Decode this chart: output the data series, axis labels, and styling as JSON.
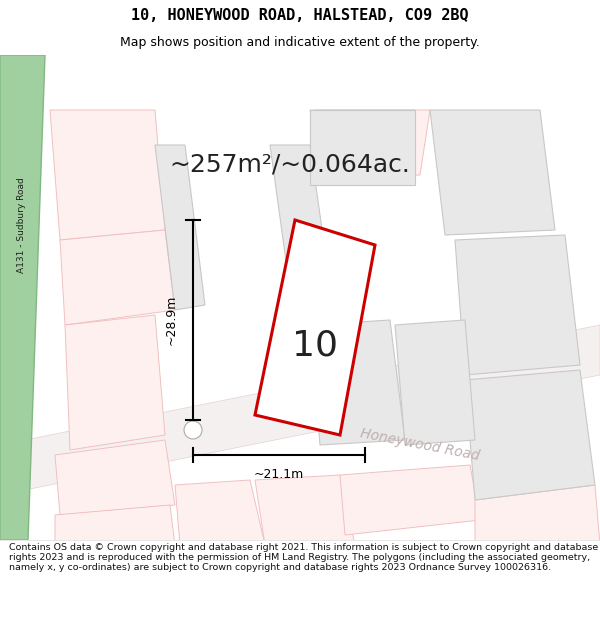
{
  "title": "10, HONEYWOOD ROAD, HALSTEAD, CO9 2BQ",
  "subtitle": "Map shows position and indicative extent of the property.",
  "area_text": "~257m²/~0.064ac.",
  "dim_width": "~21.1m",
  "dim_height": "~28.9m",
  "plot_number": "10",
  "road_label": "Honeywood Road",
  "road_label_2": "A131 - Sudbury Road",
  "footer": "Contains OS data © Crown copyright and database right 2021. This information is subject to Crown copyright and database rights 2023 and is reproduced with the permission of HM Land Registry. The polygons (including the associated geometry, namely x, y co-ordinates) are subject to Crown copyright and database rights 2023 Ordnance Survey 100026316.",
  "bg_color": "#f8f5f5",
  "plot_fill": "#ffffff",
  "plot_outline": "#cc0000",
  "neighbor_fill": "#e8e8e8",
  "neighbor_outline": "#c8c8c8",
  "pink_fill": "#fff0f0",
  "pink_outline": "#f0c0c0",
  "road_fill": "#f5f0f0",
  "road_outline_c": "#e8d0d0",
  "green_fill": "#a0d0a0",
  "green_outline": "#80b880",
  "honeywood_color": "#c0b0b0",
  "a131_color": "#202020",
  "title_fontsize": 11,
  "subtitle_fontsize": 9,
  "area_fontsize": 18,
  "plot_num_fontsize": 26,
  "dim_fontsize": 9,
  "road_fontsize": 10,
  "footer_fontsize": 6.8
}
